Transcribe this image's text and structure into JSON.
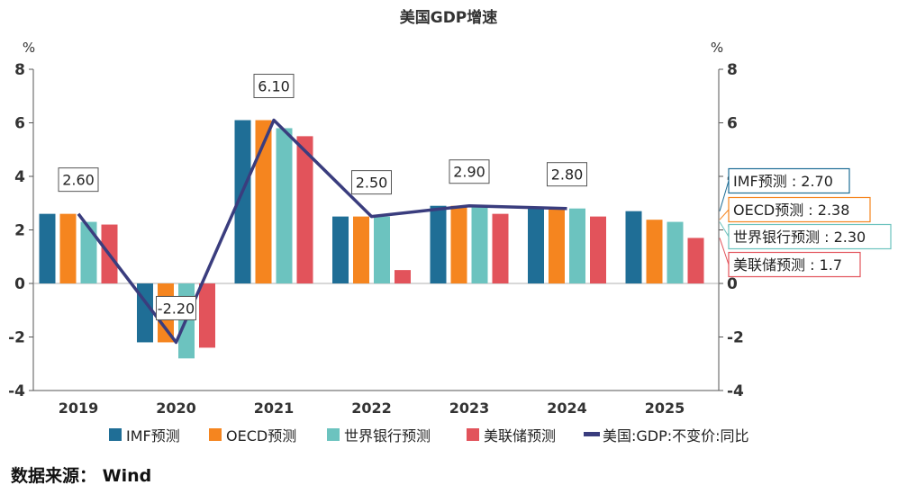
{
  "chart_data": {
    "type": "bar",
    "title": "美国GDP增速",
    "ylabel_left": "%",
    "ylabel_right": "%",
    "ylim": [
      -4,
      8
    ],
    "yticks": [
      -4,
      -2,
      0,
      2,
      4,
      6,
      8
    ],
    "categories": [
      "2019",
      "2020",
      "2021",
      "2022",
      "2023",
      "2024",
      "2025"
    ],
    "series": [
      {
        "name": "IMF预测",
        "type": "bar",
        "color": "#1f6e96",
        "values": [
          2.6,
          -2.2,
          6.1,
          2.5,
          2.9,
          2.8,
          2.7
        ]
      },
      {
        "name": "OECD预测",
        "type": "bar",
        "color": "#f5851f",
        "values": [
          2.6,
          -2.2,
          6.1,
          2.5,
          2.9,
          2.8,
          2.38
        ]
      },
      {
        "name": "世界银行预测",
        "type": "bar",
        "color": "#6cc3bf",
        "values": [
          2.3,
          -2.8,
          5.8,
          2.5,
          2.9,
          2.8,
          2.3
        ]
      },
      {
        "name": "美联储预测",
        "type": "bar",
        "color": "#e2535b",
        "values": [
          2.2,
          -2.4,
          5.5,
          0.5,
          2.6,
          2.5,
          1.7
        ]
      },
      {
        "name": "美国:GDP:不变价:同比",
        "type": "line",
        "color": "#3a3d7e",
        "values": [
          2.6,
          -2.2,
          6.1,
          2.5,
          2.9,
          2.8,
          null
        ]
      }
    ],
    "line_labels": [
      "2.60",
      "-2.20",
      "6.10",
      "2.50",
      "2.90",
      "2.80"
    ],
    "callouts": [
      {
        "text": "IMF预测 : 2.70",
        "color": "#1f6e96"
      },
      {
        "text": "OECD预测 : 2.38",
        "color": "#f5851f"
      },
      {
        "text": "世界银行预测 : 2.30",
        "color": "#6cc3bf"
      },
      {
        "text": "美联储预测 : 1.7",
        "color": "#e2535b"
      }
    ],
    "legend_position": "bottom",
    "grid": false
  },
  "source": "数据来源：  Wind"
}
